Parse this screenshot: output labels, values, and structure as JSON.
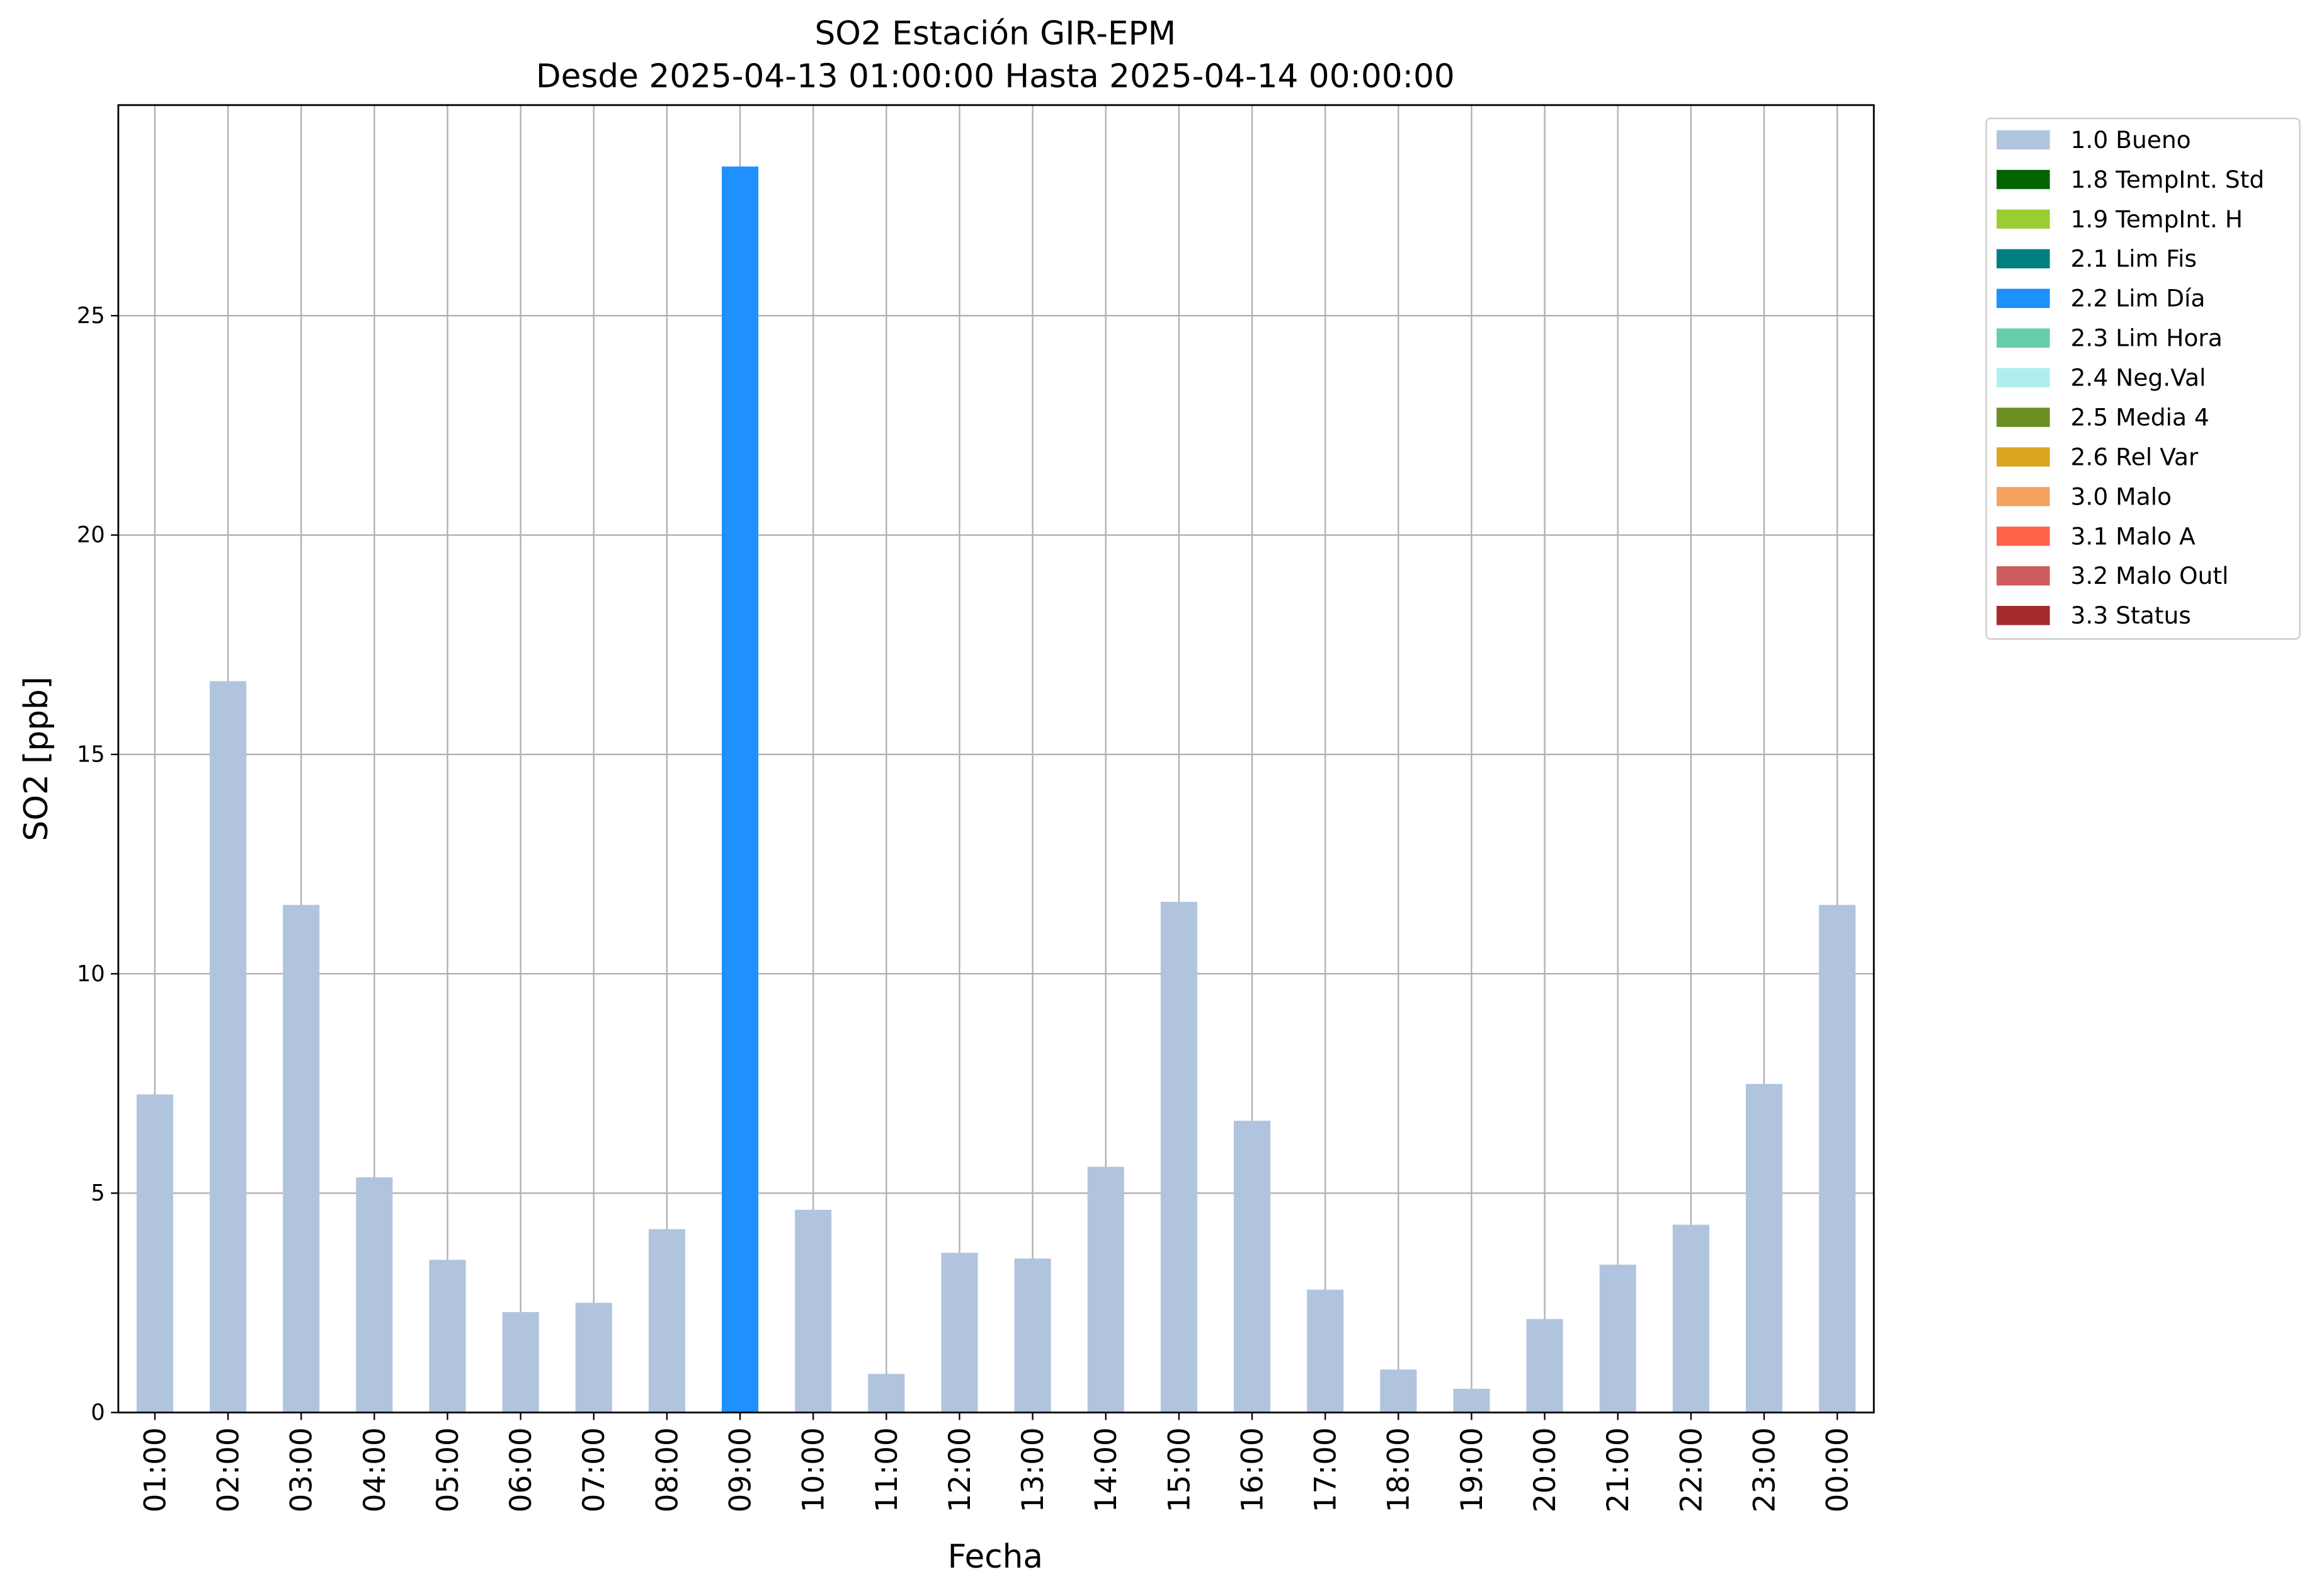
{
  "chart_data": {
    "type": "stacked_bar",
    "title": "SO2 Estación GIR-EPM",
    "subtitle": "Desde 2025-04-13 01:00:00 Hasta 2025-04-14 00:00:00",
    "x_label": "Fecha",
    "y_label": "SO2 [ppb]",
    "categories": [
      "01:00",
      "02:00",
      "03:00",
      "04:00",
      "05:00",
      "06:00",
      "07:00",
      "08:00",
      "09:00",
      "10:00",
      "11:00",
      "12:00",
      "13:00",
      "14:00",
      "15:00",
      "16:00",
      "17:00",
      "18:00",
      "19:00",
      "20:00",
      "21:00",
      "22:00",
      "23:00",
      "00:00"
    ],
    "series": [
      {
        "name": "1.0 Bueno",
        "color": "#b0c4de",
        "values": [
          7.25,
          16.67,
          11.57,
          5.36,
          3.48,
          2.29,
          2.5,
          4.18,
          null,
          4.62,
          0.88,
          3.64,
          3.51,
          5.6,
          11.64,
          6.65,
          2.8,
          0.98,
          0.54,
          2.13,
          3.37,
          4.28,
          7.49,
          11.57
        ]
      },
      {
        "name": "1.8 TempInt. Std",
        "color": "#006400",
        "values": [
          null,
          null,
          null,
          null,
          null,
          null,
          null,
          null,
          null,
          null,
          null,
          null,
          null,
          null,
          null,
          null,
          null,
          null,
          null,
          null,
          null,
          null,
          null,
          null
        ]
      },
      {
        "name": "1.9 TempInt. H",
        "color": "#9acd32",
        "values": [
          null,
          null,
          null,
          null,
          null,
          null,
          null,
          null,
          null,
          null,
          null,
          null,
          null,
          null,
          null,
          null,
          null,
          null,
          null,
          null,
          null,
          null,
          null,
          null
        ]
      },
      {
        "name": "2.1 Lim Fis",
        "color": "#008080",
        "values": [
          null,
          null,
          null,
          null,
          null,
          null,
          null,
          null,
          null,
          null,
          null,
          null,
          null,
          null,
          null,
          null,
          null,
          null,
          null,
          null,
          null,
          null,
          null,
          null
        ]
      },
      {
        "name": "2.2 Lim Día",
        "color": "#1e90ff",
        "values": [
          null,
          null,
          null,
          null,
          null,
          null,
          null,
          null,
          28.4,
          null,
          null,
          null,
          null,
          null,
          null,
          null,
          null,
          null,
          null,
          null,
          null,
          null,
          null,
          null
        ]
      },
      {
        "name": "2.3 Lim Hora",
        "color": "#66cdaa",
        "values": [
          null,
          null,
          null,
          null,
          null,
          null,
          null,
          null,
          null,
          null,
          null,
          null,
          null,
          null,
          null,
          null,
          null,
          null,
          null,
          null,
          null,
          null,
          null,
          null
        ]
      },
      {
        "name": "2.4 Neg.Val",
        "color": "#afeeee",
        "values": [
          null,
          null,
          null,
          null,
          null,
          null,
          null,
          null,
          null,
          null,
          null,
          null,
          null,
          null,
          null,
          null,
          null,
          null,
          null,
          null,
          null,
          null,
          null,
          null
        ]
      },
      {
        "name": "2.5 Media 4",
        "color": "#6b8e23",
        "values": [
          null,
          null,
          null,
          null,
          null,
          null,
          null,
          null,
          null,
          null,
          null,
          null,
          null,
          null,
          null,
          null,
          null,
          null,
          null,
          null,
          null,
          null,
          null,
          null
        ]
      },
      {
        "name": "2.6 Rel Var",
        "color": "#daa520",
        "values": [
          null,
          null,
          null,
          null,
          null,
          null,
          null,
          null,
          null,
          null,
          null,
          null,
          null,
          null,
          null,
          null,
          null,
          null,
          null,
          null,
          null,
          null,
          null,
          null
        ]
      },
      {
        "name": "3.0 Malo",
        "color": "#f4a460",
        "values": [
          null,
          null,
          null,
          null,
          null,
          null,
          null,
          null,
          null,
          null,
          null,
          null,
          null,
          null,
          null,
          null,
          null,
          null,
          null,
          null,
          null,
          null,
          null,
          null
        ]
      },
      {
        "name": "3.1 Malo A",
        "color": "#ff6347",
        "values": [
          null,
          null,
          null,
          null,
          null,
          null,
          null,
          null,
          null,
          null,
          null,
          null,
          null,
          null,
          null,
          null,
          null,
          null,
          null,
          null,
          null,
          null,
          null,
          null
        ]
      },
      {
        "name": "3.2 Malo Outl",
        "color": "#cd5c5c",
        "values": [
          null,
          null,
          null,
          null,
          null,
          null,
          null,
          null,
          null,
          null,
          null,
          null,
          null,
          null,
          null,
          null,
          null,
          null,
          null,
          null,
          null,
          null,
          null,
          null
        ]
      },
      {
        "name": "3.3 Status",
        "color": "#a52a2a",
        "values": [
          null,
          null,
          null,
          null,
          null,
          null,
          null,
          null,
          null,
          null,
          null,
          null,
          null,
          null,
          null,
          null,
          null,
          null,
          null,
          null,
          null,
          null,
          null,
          null
        ]
      }
    ],
    "ylim": [
      0,
      29.8
    ],
    "yticks": [
      0,
      5,
      10,
      15,
      20,
      25
    ],
    "grid": true,
    "legend": "outside-right"
  }
}
